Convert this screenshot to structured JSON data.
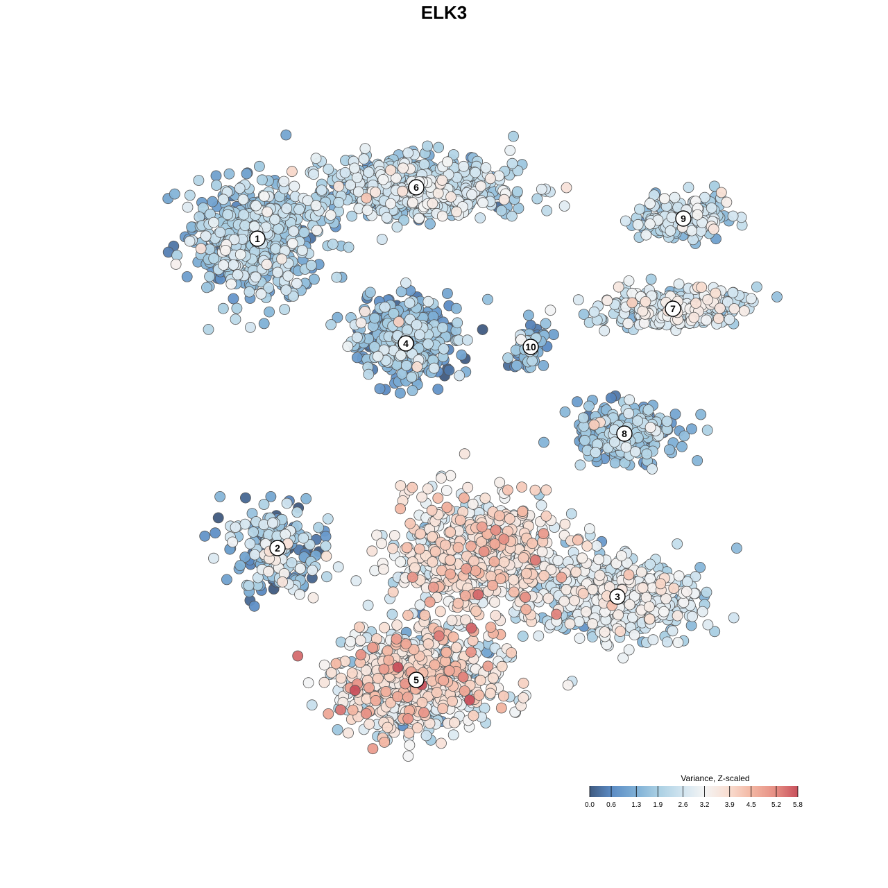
{
  "chart_data": {
    "type": "scatter",
    "title": "ELK3",
    "xlabel": "",
    "ylabel": "",
    "grid": false,
    "axes_visible": false,
    "point_style": {
      "stroke": "#555555"
    },
    "clusters": [
      {
        "label": "1",
        "center": [
          371,
          344
        ],
        "spread": [
          80,
          75
        ],
        "count": 620,
        "mean": 1.7,
        "sd": 0.7
      },
      {
        "label": "6",
        "center": [
          600,
          270
        ],
        "spread": [
          130,
          40
        ],
        "count": 600,
        "mean": 2.2,
        "sd": 0.6
      },
      {
        "label": "4",
        "center": [
          585,
          495
        ],
        "spread": [
          65,
          55
        ],
        "count": 380,
        "mean": 1.3,
        "sd": 0.8
      },
      {
        "label": "10",
        "center": [
          765,
          500
        ],
        "spread": [
          25,
          30
        ],
        "count": 60,
        "mean": 1.2,
        "sd": 0.6
      },
      {
        "label": "9",
        "center": [
          985,
          315
        ],
        "spread": [
          65,
          28
        ],
        "count": 170,
        "mean": 2.2,
        "sd": 0.6
      },
      {
        "label": "7",
        "center": [
          970,
          445
        ],
        "spread": [
          95,
          30
        ],
        "count": 260,
        "mean": 2.6,
        "sd": 0.6
      },
      {
        "label": "8",
        "center": [
          900,
          625
        ],
        "spread": [
          65,
          35
        ],
        "count": 260,
        "mean": 1.6,
        "sd": 0.7
      },
      {
        "label": "2",
        "center": [
          400,
          790
        ],
        "spread": [
          60,
          55
        ],
        "count": 230,
        "mean": 1.6,
        "sd": 0.9
      },
      {
        "label": "3",
        "center": [
          890,
          860
        ],
        "spread": [
          100,
          55
        ],
        "count": 560,
        "mean": 2.5,
        "sd": 0.6
      },
      {
        "label": "5",
        "center": [
          600,
          980
        ],
        "spread": [
          105,
          70
        ],
        "count": 760,
        "mean": 3.1,
        "sd": 0.9
      },
      {
        "label": "",
        "center": [
          690,
          800
        ],
        "spread": [
          110,
          80
        ],
        "count": 620,
        "mean": 3.2,
        "sd": 0.8
      }
    ],
    "colorbar": {
      "title": "Variance, Z-scaled",
      "range": [
        0.0,
        5.8
      ],
      "ticks": [
        "0.0",
        "0.6",
        "1.3",
        "1.9",
        "2.6",
        "3.2",
        "3.9",
        "4.5",
        "5.2",
        "5.8"
      ],
      "stops": [
        {
          "value": 0.0,
          "color": "#3f5a80"
        },
        {
          "value": 0.6,
          "color": "#5b8bc4"
        },
        {
          "value": 1.3,
          "color": "#7fb0d6"
        },
        {
          "value": 1.9,
          "color": "#a9cfe3"
        },
        {
          "value": 2.6,
          "color": "#d2e5f0"
        },
        {
          "value": 3.2,
          "color": "#f4f4f4"
        },
        {
          "value": 3.9,
          "color": "#f9dccf"
        },
        {
          "value": 4.5,
          "color": "#f3b7a3"
        },
        {
          "value": 5.2,
          "color": "#e58c82"
        },
        {
          "value": 5.8,
          "color": "#c8505c"
        }
      ]
    }
  }
}
